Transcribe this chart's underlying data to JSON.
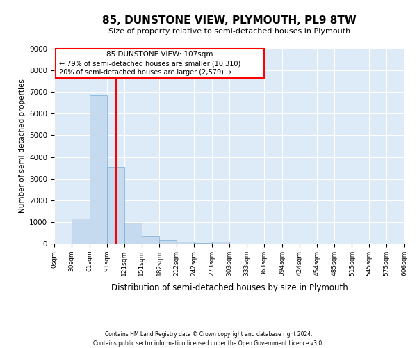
{
  "title": "85, DUNSTONE VIEW, PLYMOUTH, PL9 8TW",
  "subtitle": "Size of property relative to semi-detached houses in Plymouth",
  "xlabel": "Distribution of semi-detached houses by size in Plymouth",
  "ylabel": "Number of semi-detached properties",
  "bar_color": "#c5d9ef",
  "bar_edge_color": "#7aadd4",
  "background_color": "#ddeaf7",
  "annotation_line_color": "red",
  "property_sqm": 107,
  "annotation_text_line1": "85 DUNSTONE VIEW: 107sqm",
  "annotation_text_line2": "← 79% of semi-detached houses are smaller (10,310)",
  "annotation_text_line3": "20% of semi-detached houses are larger (2,579) →",
  "bin_edges": [
    0,
    30,
    61,
    91,
    121,
    151,
    182,
    212,
    242,
    273,
    303,
    333,
    363,
    394,
    424,
    454,
    485,
    515,
    545,
    575,
    606
  ],
  "bin_counts": [
    0,
    1150,
    6850,
    3550,
    970,
    350,
    170,
    100,
    20,
    100,
    0,
    0,
    0,
    0,
    0,
    0,
    0,
    0,
    0,
    0
  ],
  "ylim": [
    0,
    9000
  ],
  "yticks": [
    0,
    1000,
    2000,
    3000,
    4000,
    5000,
    6000,
    7000,
    8000,
    9000
  ],
  "tick_labels": [
    "0sqm",
    "30sqm",
    "61sqm",
    "91sqm",
    "121sqm",
    "151sqm",
    "182sqm",
    "212sqm",
    "242sqm",
    "273sqm",
    "303sqm",
    "333sqm",
    "363sqm",
    "394sqm",
    "424sqm",
    "454sqm",
    "485sqm",
    "515sqm",
    "545sqm",
    "575sqm",
    "606sqm"
  ],
  "footer_line1": "Contains HM Land Registry data © Crown copyright and database right 2024.",
  "footer_line2": "Contains public sector information licensed under the Open Government Licence v3.0."
}
